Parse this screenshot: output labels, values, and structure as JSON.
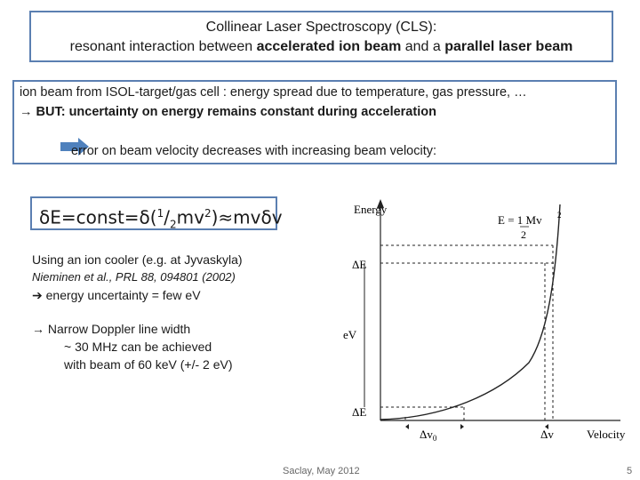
{
  "title": {
    "line1": "Collinear Laser Spectroscopy (CLS):",
    "line2_pre": "resonant interaction between ",
    "line2_bold1": "accelerated ion beam",
    "line2_mid": " and a ",
    "line2_bold2": "parallel laser beam"
  },
  "info": {
    "line1": "ion beam from ISOL-target/gas cell : energy spread due to temperature, gas pressure, …",
    "line2_arrow": "→",
    "line2_bold": " BUT: uncertainty on energy remains constant during acceleration",
    "line3": "error on beam velocity decreases with increasing beam velocity:"
  },
  "formula": {
    "p1": "δE=const=δ(",
    "sup1": "1",
    "slash": "/",
    "sub2": "2",
    "p2": "mv",
    "sup2": "2",
    "p3": ")≈mvδv"
  },
  "bullets": {
    "cooler": "Using an ion cooler (e.g. at Jyvaskyla)",
    "ref": "Nieminen et al., PRL 88, 094801 (2002)",
    "uncertainty": " energy uncertainty = few eV",
    "doppler": " Narrow Doppler line width",
    "mhz": "~ 30 MHz can be achieved",
    "beam": "with beam of 60 keV (+/- 2 eV)"
  },
  "graph": {
    "y_label": "Energy",
    "equation": "E = 1 Mv",
    "eq_den": "2",
    "eq_exp": "2",
    "delta_e": "ΔE",
    "ev": "eV",
    "dv0": "Δv",
    "dv0_sub": "0",
    "dv": "Δv",
    "x_label": "Velocity"
  },
  "footer": {
    "date": "Saclay, May 2012",
    "page": "5"
  }
}
